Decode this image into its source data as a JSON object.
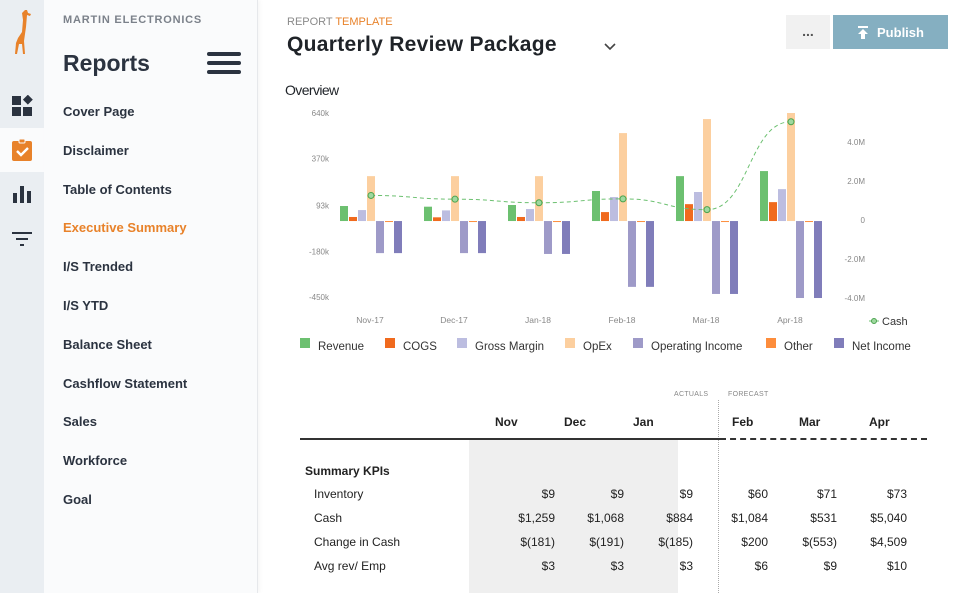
{
  "sidebar": {
    "company": "MARTIN ELECTRONICS",
    "title": "Reports",
    "items": [
      {
        "label": "Cover Page",
        "active": false
      },
      {
        "label": "Disclaimer",
        "active": false
      },
      {
        "label": "Table of Contents",
        "active": false
      },
      {
        "label": "Executive Summary",
        "active": true
      },
      {
        "label": "I/S Trended",
        "active": false
      },
      {
        "label": "I/S YTD",
        "active": false
      },
      {
        "label": "Balance Sheet",
        "active": false
      },
      {
        "label": "Cashflow Statement",
        "active": false
      },
      {
        "label": "Sales",
        "active": false
      },
      {
        "label": "Workforce",
        "active": false
      },
      {
        "label": "Goal",
        "active": false
      }
    ]
  },
  "rail": {
    "icons": [
      "giraffe-logo",
      "dashboard-icon",
      "clipboard-check-icon",
      "bar-chart-icon",
      "filter-icon"
    ],
    "active": "clipboard-check-icon"
  },
  "header": {
    "kicker_gray": "REPORT",
    "kicker_accent": "TEMPLATE",
    "title": "Quarterly Review Package",
    "more_label": "...",
    "publish_label": "Publish"
  },
  "colors": {
    "accent": "#e8822a",
    "publish": "#85afc1",
    "revenue": "#6cc070",
    "cogs": "#f06a1e",
    "gross_margin": "#bcbde0",
    "opex": "#fccf9f",
    "operating_income": "#9e9ac8",
    "other": "#fd8d3c",
    "net_income": "#807dba",
    "cash": "#6cc070"
  },
  "chart_data": {
    "type": "bar",
    "title": "Overview",
    "categories": [
      "Nov-17",
      "Dec-17",
      "Jan-18",
      "Feb-18",
      "Mar-18",
      "Apr-18"
    ],
    "left_axis": {
      "ticks": [
        "640k",
        "370k",
        "93k",
        "-180k",
        "-450k"
      ],
      "tick_values": [
        640,
        370,
        93,
        -180,
        -450
      ],
      "ylim": [
        -450,
        640
      ],
      "unit": "k"
    },
    "right_axis": {
      "ticks": [
        "4.0M",
        "2.0M",
        "0",
        "-2.0M",
        "-4.0M"
      ],
      "tick_values": [
        4000,
        2000,
        0,
        -2000,
        -4000
      ],
      "ylim": [
        -4000,
        5000
      ],
      "unit": "k"
    },
    "series": [
      {
        "name": "Revenue",
        "key": "revenue",
        "values": [
          89,
          85,
          95,
          178,
          266,
          296
        ]
      },
      {
        "name": "COGS",
        "key": "cogs",
        "values": [
          24,
          22,
          24,
          53,
          100,
          112
        ]
      },
      {
        "name": "Gross Margin",
        "key": "gross_margin",
        "values": [
          65,
          63,
          71,
          142,
          172,
          189
        ]
      },
      {
        "name": "OpEx",
        "key": "opex",
        "values": [
          266,
          266,
          266,
          521,
          604,
          640
        ]
      },
      {
        "name": "Operating Income",
        "key": "operating_income",
        "values": [
          -190,
          -190,
          -195,
          -390,
          -432,
          -456
        ]
      },
      {
        "name": "Other",
        "key": "other",
        "values": [
          -2,
          -2,
          -2,
          -2,
          -2,
          -2
        ]
      },
      {
        "name": "Net Income",
        "key": "net_income",
        "values": [
          -190,
          -190,
          -195,
          -390,
          -432,
          -456
        ]
      }
    ],
    "line_series": {
      "name": "Cash",
      "axis": "right",
      "values": [
        1259,
        1068,
        884,
        1084,
        531,
        5040
      ]
    },
    "legend": [
      "Revenue",
      "COGS",
      "Gross Margin",
      "OpEx",
      "Operating Income",
      "Other",
      "Net Income"
    ],
    "legend_position": "bottom",
    "grid": false
  },
  "table": {
    "actuals_label": "ACTUALS",
    "forecast_label": "FORECAST",
    "columns": [
      "Nov",
      "Dec",
      "Jan",
      "Feb",
      "Mar",
      "Apr"
    ],
    "section": "Summary KPIs",
    "rows": [
      {
        "label": "Inventory",
        "values": [
          "$9",
          "$9",
          "$9",
          "$60",
          "$71",
          "$73"
        ]
      },
      {
        "label": "Cash",
        "values": [
          "$1,259",
          "$1,068",
          "$884",
          "$1,084",
          "$531",
          "$5,040"
        ]
      },
      {
        "label": "Change in Cash",
        "values": [
          "$(181)",
          "$(191)",
          "$(185)",
          "$200",
          "$(553)",
          "$4,509"
        ]
      },
      {
        "label": "Avg rev/ Emp",
        "values": [
          "$3",
          "$3",
          "$3",
          "$6",
          "$9",
          "$10"
        ]
      }
    ]
  }
}
